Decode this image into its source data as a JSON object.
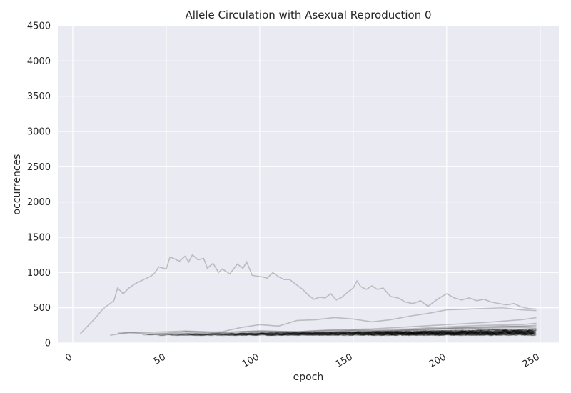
{
  "chart_data": {
    "type": "line",
    "title": "Allele Circulation with Asexual Reproduction 0",
    "xlabel": "epoch",
    "ylabel": "occurrences",
    "xlim": [
      -8,
      260
    ],
    "ylim": [
      0,
      4500
    ],
    "x_ticks": [
      0,
      50,
      100,
      150,
      200,
      250
    ],
    "x_tick_labels": [
      "0",
      "50",
      "100",
      "150",
      "200",
      "250"
    ],
    "y_ticks": [
      0,
      500,
      1000,
      1500,
      2000,
      2500,
      3000,
      3500,
      4000,
      4500
    ],
    "y_tick_labels": [
      "0",
      "500",
      "1000",
      "1500",
      "2000",
      "2500",
      "3000",
      "3500",
      "4000",
      "4500"
    ],
    "grid": true,
    "background": "#eaeaf2",
    "line_color": "#000000",
    "line_opacity": 0.15,
    "series": [
      {
        "x": [
          4,
          8,
          12,
          16,
          20,
          22,
          24,
          27,
          30,
          34,
          38,
          42,
          44,
          46,
          50,
          52,
          54,
          57,
          60,
          62,
          64,
          67,
          70,
          72,
          75,
          78,
          80,
          84,
          88,
          91,
          93,
          96,
          98,
          101,
          104,
          107,
          110,
          113,
          116,
          118,
          120,
          123,
          126,
          129,
          132,
          135,
          138,
          141,
          144,
          147,
          150,
          152,
          154,
          157,
          160,
          163,
          166,
          170,
          174,
          178,
          182,
          186,
          190,
          195,
          200,
          204,
          208,
          212,
          216,
          220,
          224,
          228,
          232,
          236,
          240,
          244,
          248
        ],
        "y": [
          130,
          240,
          350,
          480,
          560,
          600,
          780,
          700,
          780,
          850,
          900,
          950,
          1000,
          1080,
          1050,
          1220,
          1200,
          1160,
          1230,
          1150,
          1250,
          1180,
          1200,
          1060,
          1130,
          1000,
          1050,
          980,
          1120,
          1060,
          1150,
          960,
          950,
          940,
          920,
          1000,
          940,
          900,
          900,
          860,
          820,
          760,
          680,
          620,
          650,
          640,
          700,
          610,
          650,
          720,
          780,
          880,
          800,
          760,
          810,
          760,
          780,
          660,
          640,
          580,
          560,
          600,
          520,
          620,
          700,
          640,
          610,
          640,
          600,
          620,
          580,
          560,
          540,
          560,
          510,
          490,
          480
        ]
      },
      {
        "x": [
          20,
          30,
          40,
          50,
          60,
          70,
          80,
          90,
          100,
          110,
          120,
          130,
          140,
          150,
          160,
          170,
          180,
          190,
          200,
          210,
          220,
          230,
          240,
          248
        ],
        "y": [
          110,
          150,
          130,
          140,
          160,
          150,
          160,
          220,
          260,
          240,
          320,
          330,
          360,
          340,
          300,
          330,
          380,
          420,
          470,
          480,
          490,
          500,
          470,
          460
        ]
      },
      {
        "x": [
          24,
          40,
          60,
          80,
          100,
          120,
          140,
          160,
          180,
          200,
          220,
          240,
          248
        ],
        "y": [
          140,
          150,
          170,
          150,
          170,
          160,
          190,
          200,
          230,
          260,
          290,
          330,
          360
        ]
      },
      {
        "x": [
          40,
          60,
          80,
          100,
          120,
          140,
          160,
          180,
          200,
          220,
          240,
          248
        ],
        "y": [
          120,
          140,
          130,
          150,
          150,
          170,
          170,
          190,
          210,
          220,
          240,
          250
        ]
      },
      {
        "x": [
          60,
          80,
          100,
          120,
          140,
          160,
          180,
          200,
          220,
          240,
          248
        ],
        "y": [
          160,
          150,
          170,
          160,
          180,
          190,
          200,
          230,
          250,
          260,
          280
        ]
      },
      {
        "x": [
          90,
          110,
          130,
          150,
          170,
          190,
          210,
          230,
          248
        ],
        "y": [
          110,
          150,
          140,
          180,
          170,
          200,
          220,
          240,
          230
        ]
      },
      {
        "x": [
          120,
          140,
          160,
          180,
          200,
          220,
          240,
          248
        ],
        "y": [
          120,
          150,
          160,
          180,
          200,
          210,
          220,
          210
        ]
      },
      {
        "x": [
          150,
          170,
          190,
          210,
          230,
          248
        ],
        "y": [
          130,
          160,
          180,
          170,
          190,
          200
        ]
      },
      {
        "x": [
          175,
          195,
          215,
          235,
          248
        ],
        "y": [
          140,
          170,
          200,
          180,
          190
        ]
      },
      {
        "x": [
          200,
          220,
          240,
          248
        ],
        "y": [
          150,
          190,
          170,
          180
        ]
      }
    ],
    "dense_band": {
      "x_min": 36,
      "x_max": 250,
      "y_min": 100,
      "y_max": 200
    }
  }
}
